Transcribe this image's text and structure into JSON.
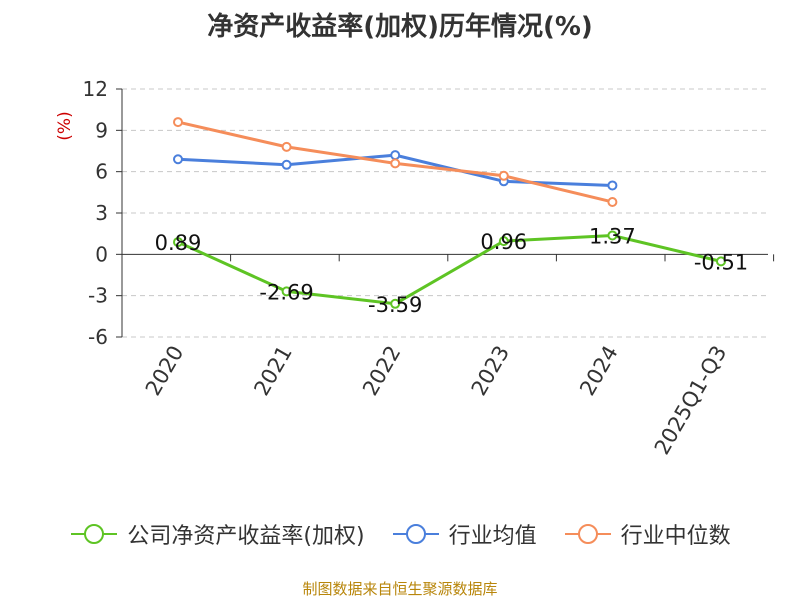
{
  "chart_data": {
    "type": "line",
    "title": "净资产收益率(加权)历年情况(%)",
    "ylabel": "(%)",
    "xlabel": "",
    "ylim": [
      -6,
      12
    ],
    "yticks": [
      -6,
      -3,
      0,
      3,
      6,
      9,
      12
    ],
    "ytick_labels": [
      "-6",
      "-3",
      "0",
      "3",
      "6",
      "9",
      "12"
    ],
    "categories": [
      "2020",
      "2021",
      "2022",
      "2023",
      "2024",
      "2025Q1-Q3"
    ],
    "grid": true,
    "legend_position": "bottom",
    "series": [
      {
        "name": "公司净资产收益率(加权)",
        "color": "#5ec424",
        "values": [
          0.89,
          -2.69,
          -3.59,
          0.96,
          1.37,
          -0.51
        ],
        "labels": [
          "0.89",
          "-2.69",
          "-3.59",
          "0.96",
          "1.37",
          "-0.51"
        ]
      },
      {
        "name": "行业均值",
        "color": "#4a7fdc",
        "values": [
          6.9,
          6.5,
          7.2,
          5.3,
          5.0,
          null
        ]
      },
      {
        "name": "行业中位数",
        "color": "#f58d5a",
        "values": [
          9.6,
          7.8,
          6.6,
          5.7,
          3.8,
          null
        ]
      }
    ]
  },
  "footer": {
    "source": "制图数据来自恒生聚源数据库"
  }
}
